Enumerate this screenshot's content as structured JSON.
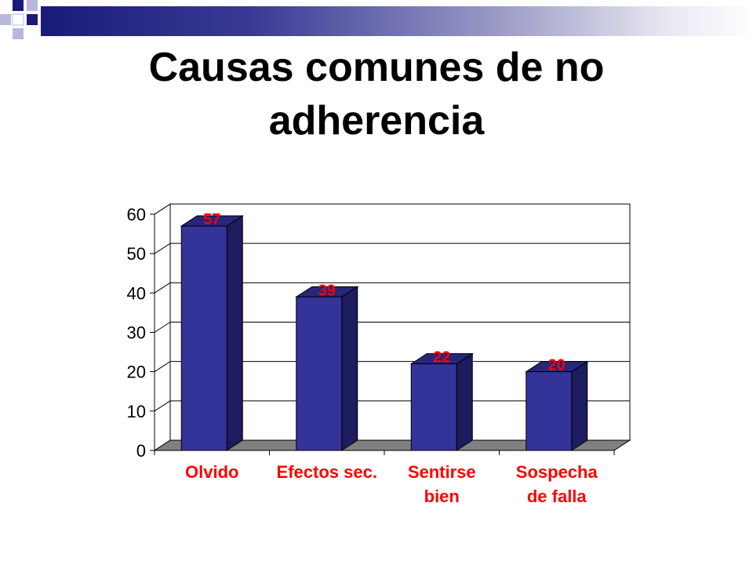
{
  "slide": {
    "title_line1": "Causas comunes de no",
    "title_line2": "adherencia"
  },
  "colors": {
    "bar_front": "#333399",
    "bar_side": "#1c1c5e",
    "bar_top": "#26267a",
    "floor": "#808080",
    "data_label": "#ff0000",
    "category_label": "#ff0000",
    "axis_text": "#000000"
  },
  "chart_data": {
    "type": "bar",
    "categories": [
      [
        "Olvido"
      ],
      [
        "Efectos sec."
      ],
      [
        "Sentirse",
        "bien"
      ],
      [
        "Sospecha",
        "de falla"
      ]
    ],
    "values": [
      57,
      39,
      22,
      20
    ],
    "data_labels": [
      "57",
      "39",
      "22",
      "20"
    ],
    "yticks": [
      0,
      10,
      20,
      30,
      40,
      50,
      60
    ],
    "ylim": [
      0,
      60
    ],
    "grid": true,
    "legend": "none",
    "style": "3d"
  }
}
